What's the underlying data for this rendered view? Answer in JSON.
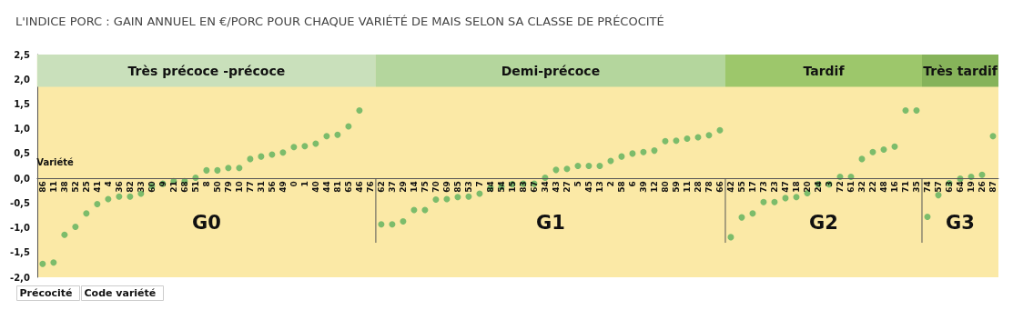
{
  "chart_data": {
    "type": "scatter",
    "title": "L'INDICE PORC : GAIN ANNUEL EN €/PORC POUR CHAQUE VARIÉTÉ DE MAIS SELON SA CLASSE DE PRÉCOCITÉ",
    "xlabel": "Variété",
    "categories": [
      "86",
      "11",
      "38",
      "52",
      "25",
      "41",
      "4",
      "36",
      "82",
      "33",
      "60",
      "9",
      "21",
      "68",
      "51",
      "8",
      "50",
      "79",
      "10",
      "77",
      "31",
      "56",
      "49",
      "0",
      "1",
      "40",
      "44",
      "81",
      "65",
      "46",
      "76",
      "62",
      "37",
      "29",
      "14",
      "75",
      "70",
      "69",
      "85",
      "53",
      "7",
      "84",
      "54",
      "15",
      "83",
      "67",
      "34",
      "43",
      "27",
      "5",
      "45",
      "13",
      "2",
      "58",
      "6",
      "39",
      "12",
      "80",
      "59",
      "11",
      "28",
      "78",
      "66",
      "42",
      "55",
      "17",
      "73",
      "23",
      "47",
      "18",
      "20",
      "24",
      "3",
      "72",
      "61",
      "32",
      "22",
      "48",
      "16",
      "71",
      "35",
      "74",
      "57",
      "63",
      "64",
      "19",
      "26",
      "87"
    ],
    "series": [
      {
        "color": "#5cb05c",
        "values": [
          -1.73,
          -1.7,
          -1.14,
          -0.98,
          -0.71,
          -0.52,
          -0.42,
          -0.37,
          -0.37,
          -0.31,
          -0.16,
          -0.11,
          -0.06,
          -0.06,
          0.01,
          0.16,
          0.16,
          0.21,
          0.21,
          0.39,
          0.44,
          0.48,
          0.52,
          0.63,
          0.65,
          0.7,
          0.85,
          0.88,
          1.05,
          1.37,
          null,
          -0.93,
          -0.93,
          -0.87,
          -0.64,
          -0.64,
          -0.43,
          -0.42,
          -0.38,
          -0.37,
          -0.31,
          -0.19,
          -0.17,
          -0.12,
          -0.11,
          -0.11,
          0.01,
          0.17,
          0.19,
          0.25,
          0.25,
          0.25,
          0.35,
          0.44,
          0.5,
          0.53,
          0.56,
          0.75,
          0.76,
          0.8,
          0.83,
          0.87,
          0.97,
          -1.19,
          -0.79,
          -0.71,
          -0.48,
          -0.48,
          -0.4,
          -0.38,
          -0.3,
          -0.12,
          -0.12,
          0.03,
          0.03,
          0.39,
          0.53,
          0.58,
          0.64,
          1.37,
          1.37,
          -0.78,
          -0.34,
          -0.1,
          -0.01,
          0.03,
          0.07,
          0.85
        ]
      }
    ],
    "ylim": [
      -2,
      2.5
    ],
    "yticks": [
      {
        "value": -2,
        "label": "-2,0"
      },
      {
        "value": -1.5,
        "label": "-1,5"
      },
      {
        "value": -1,
        "label": "-1,0"
      },
      {
        "value": -0.5,
        "label": "-0,5"
      },
      {
        "value": 0,
        "label": "0,0"
      },
      {
        "value": 0.5,
        "label": "0,5"
      },
      {
        "value": 1,
        "label": "1,0"
      },
      {
        "value": 1.5,
        "label": "1,5"
      },
      {
        "value": 2,
        "label": "2,0"
      },
      {
        "value": 2.5,
        "label": "2,5"
      }
    ],
    "bands": [
      {
        "axis": "x",
        "from": "86",
        "to": "76",
        "label": "Très précoce -précoce",
        "color": "#c9e0bb"
      },
      {
        "axis": "x",
        "from": "62",
        "to": "66",
        "label": "Demi-précoce",
        "color": "#b4d69d"
      },
      {
        "axis": "x",
        "from": "42",
        "to": "35",
        "label": "Tardif",
        "color": "#9dc76b"
      },
      {
        "axis": "x",
        "from": "74",
        "to": "87",
        "label": "Très tardif",
        "color": "#86b35a"
      }
    ],
    "annotations": [
      "G0",
      "G1",
      "G2",
      "G3",
      "Précocité",
      "Code variété"
    ],
    "marker": "circle",
    "grid": false
  }
}
